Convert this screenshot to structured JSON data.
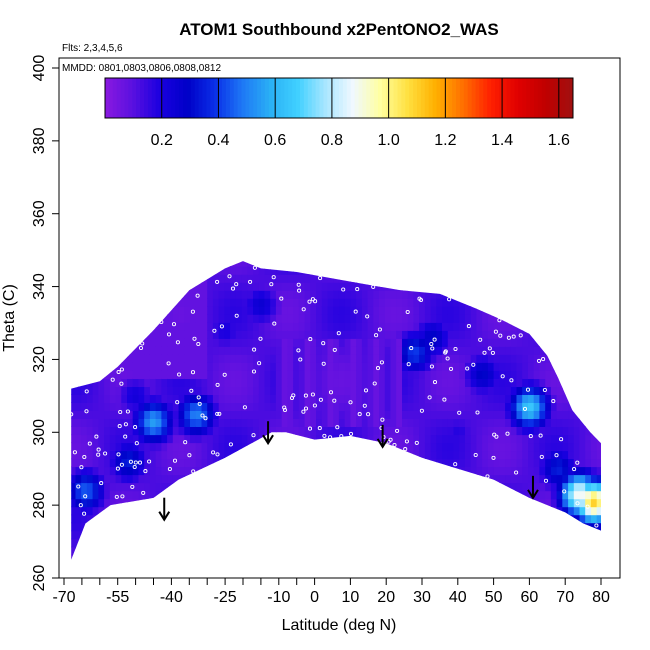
{
  "chart_data": {
    "type": "heatmap",
    "title": "ATOM1 Southbound x2PentONO2_WAS",
    "annotations": {
      "flights": "Flts: 2,3,4,5,6",
      "dates": "MMDD: 0801,0803,0806,0808,0812"
    },
    "xlabel": "Latitude (deg N)",
    "ylabel": "Theta (C)",
    "xlim": [
      -70,
      80
    ],
    "ylim": [
      260,
      400
    ],
    "x_tick_labels": [
      "-70",
      "-55",
      "-40",
      "-25",
      "-10",
      "0",
      "10",
      "20",
      "30",
      "40",
      "50",
      "60",
      "70",
      "80"
    ],
    "x_minor_ticks": [
      -65,
      -60,
      -50,
      -45,
      -35,
      -30,
      -20,
      -15,
      -5
    ],
    "y_tick_labels": [
      "260",
      "280",
      "300",
      "320",
      "340",
      "360",
      "380",
      "400"
    ],
    "colorbar": {
      "min": 0,
      "max": 1.65,
      "tick_values": [
        0.2,
        0.4,
        0.6,
        0.8,
        1.0,
        1.2,
        1.4,
        1.6
      ],
      "tick_labels": [
        "0.2",
        "0.4",
        "0.6",
        "0.8",
        "1.0",
        "1.2",
        "1.4",
        "1.6"
      ],
      "colors": [
        "#8a1ae0",
        "#5a10e0",
        "#1a00e0",
        "#0000c8",
        "#0a30e8",
        "#1e78f5",
        "#2ab0f5",
        "#40d0ff",
        "#a8e6ff",
        "#f0f8ff",
        "#ffffa0",
        "#ffe040",
        "#ffb000",
        "#ff7000",
        "#ff2000",
        "#e00000",
        "#c00000",
        "#a01010"
      ]
    },
    "tropopause_arrows": [
      {
        "lat": -42,
        "theta": 276
      },
      {
        "lat": -13,
        "theta": 297
      },
      {
        "lat": 19,
        "theta": 296
      },
      {
        "lat": 61,
        "theta": 282
      }
    ],
    "domain_envelope": {
      "lower": [
        [
          -68,
          265
        ],
        [
          -64,
          275
        ],
        [
          -57,
          280
        ],
        [
          -45,
          282
        ],
        [
          -38,
          287
        ],
        [
          -25,
          293
        ],
        [
          -12,
          300
        ],
        [
          -8,
          300
        ],
        [
          0,
          298
        ],
        [
          10,
          299
        ],
        [
          20,
          297
        ],
        [
          30,
          293
        ],
        [
          40,
          290
        ],
        [
          50,
          287
        ],
        [
          60,
          282
        ],
        [
          70,
          278
        ],
        [
          75,
          275
        ],
        [
          80,
          273
        ]
      ],
      "upper": [
        [
          80,
          297
        ],
        [
          77,
          300
        ],
        [
          72,
          306
        ],
        [
          68,
          315
        ],
        [
          65,
          321
        ],
        [
          60,
          327
        ],
        [
          52,
          331
        ],
        [
          45,
          334
        ],
        [
          35,
          338
        ],
        [
          24,
          339
        ],
        [
          18,
          340
        ],
        [
          12,
          341
        ],
        [
          -5,
          344
        ],
        [
          -15,
          345
        ],
        [
          -20,
          347
        ],
        [
          -25,
          345
        ],
        [
          -35,
          339
        ],
        [
          -45,
          328
        ],
        [
          -55,
          318
        ],
        [
          -60,
          314
        ],
        [
          -68,
          312
        ]
      ]
    },
    "hotspots": [
      {
        "lat": -45,
        "theta": 303,
        "value": 0.55
      },
      {
        "lat": -33,
        "theta": 305,
        "value": 0.5
      },
      {
        "lat": -64,
        "theta": 284,
        "value": 0.45
      },
      {
        "lat": -52,
        "theta": 292,
        "value": 0.35
      },
      {
        "lat": 28,
        "theta": 322,
        "value": 0.4
      },
      {
        "lat": 33,
        "theta": 326,
        "value": 0.3
      },
      {
        "lat": 60,
        "theta": 307,
        "value": 0.65
      },
      {
        "lat": 74,
        "theta": 283,
        "value": 0.9
      },
      {
        "lat": 78,
        "theta": 281,
        "value": 1.1
      },
      {
        "lat": 68,
        "theta": 290,
        "value": 0.35
      },
      {
        "lat": -25,
        "theta": 328,
        "value": 0.2
      },
      {
        "lat": 47,
        "theta": 316,
        "value": 0.3
      },
      {
        "lat": -15,
        "theta": 335,
        "value": 0.25
      },
      {
        "lat": 5,
        "theta": 320,
        "value": 0.05
      },
      {
        "lat": -5,
        "theta": 312,
        "value": 0.08
      },
      {
        "lat": 20,
        "theta": 310,
        "value": 0.1
      },
      {
        "lat": 40,
        "theta": 300,
        "value": 0.18
      },
      {
        "lat": -50,
        "theta": 310,
        "value": 0.22
      }
    ]
  }
}
